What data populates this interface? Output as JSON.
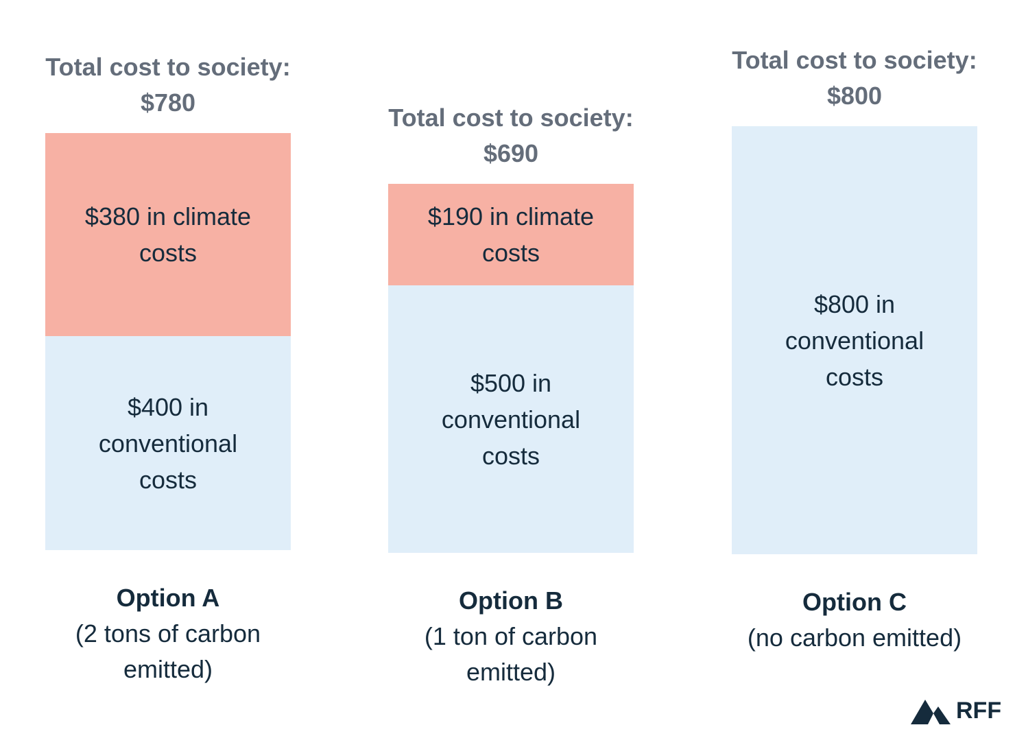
{
  "chart_data": {
    "type": "bar",
    "stacked": true,
    "categories": [
      "Option A",
      "Option B",
      "Option C"
    ],
    "subtitles": [
      "(2 tons of carbon emitted)",
      "(1 ton of carbon emitted)",
      "(no carbon emitted)"
    ],
    "totals_label": [
      "Total cost to society: $780",
      "Total cost to society: $690",
      "Total cost to society: $800"
    ],
    "totals": [
      780,
      690,
      800
    ],
    "series": [
      {
        "key": "conventional",
        "values": [
          400,
          500,
          800
        ],
        "labels": [
          "$400 in conventional costs",
          "$500 in conventional costs",
          "$800 in conventional costs"
        ],
        "color": "#e0eef9"
      },
      {
        "key": "climate",
        "values": [
          380,
          190,
          0
        ],
        "labels": [
          "$380 in climate costs",
          "$190 in climate costs",
          ""
        ],
        "color": "#f7b1a4"
      }
    ],
    "axes_visible": false,
    "grid": false
  },
  "logo": {
    "text": "RFF",
    "icon": "mountain-icon"
  }
}
